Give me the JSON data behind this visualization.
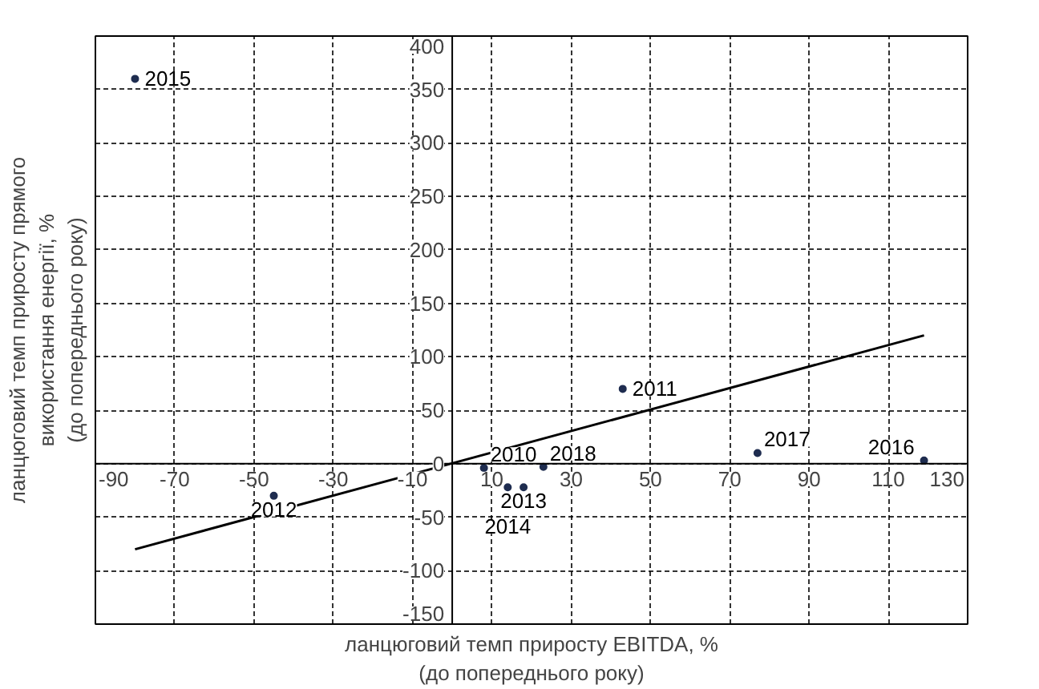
{
  "chart_data": {
    "type": "scatter",
    "xlabel": "ланцюговий темп приросту EBITDA, %\n(до попереднього року)",
    "ylabel": "ланцюговий темп приросту прямого\nвикористання енергії, %\n(до попереднього року)",
    "xlim": [
      -90,
      130
    ],
    "ylim": [
      -150,
      400
    ],
    "xticks": [
      -90,
      -70,
      -50,
      -30,
      -10,
      10,
      30,
      50,
      70,
      90,
      110,
      130
    ],
    "yticks": [
      -150,
      -100,
      -50,
      0,
      50,
      100,
      150,
      200,
      250,
      300,
      350,
      400
    ],
    "grid": true,
    "series": [
      {
        "marker": "circle",
        "color": "#1f2d50",
        "x": [
          8,
          43,
          -45,
          18,
          14,
          -80,
          119,
          77,
          23
        ],
        "values": [
          -4,
          70,
          -30,
          -22,
          -22,
          360,
          3,
          10,
          -3
        ]
      },
      {
        "type": "line",
        "marker": "none",
        "color": "#000000",
        "x": [
          -80,
          119
        ],
        "values": [
          -80,
          120
        ]
      }
    ],
    "annotations": [
      {
        "text": "2010",
        "x": 8,
        "y": -4
      },
      {
        "text": "2011",
        "x": 43,
        "y": 70
      },
      {
        "text": "2012",
        "x": -45,
        "y": -30
      },
      {
        "text": "2013",
        "x": 18,
        "y": -22
      },
      {
        "text": "2014",
        "x": 14,
        "y": -22
      },
      {
        "text": "2015",
        "x": -80,
        "y": 360
      },
      {
        "text": "2016",
        "x": 119,
        "y": 3
      },
      {
        "text": "2017",
        "x": 77,
        "y": 10
      },
      {
        "text": "2018",
        "x": 23,
        "y": -3
      }
    ]
  }
}
